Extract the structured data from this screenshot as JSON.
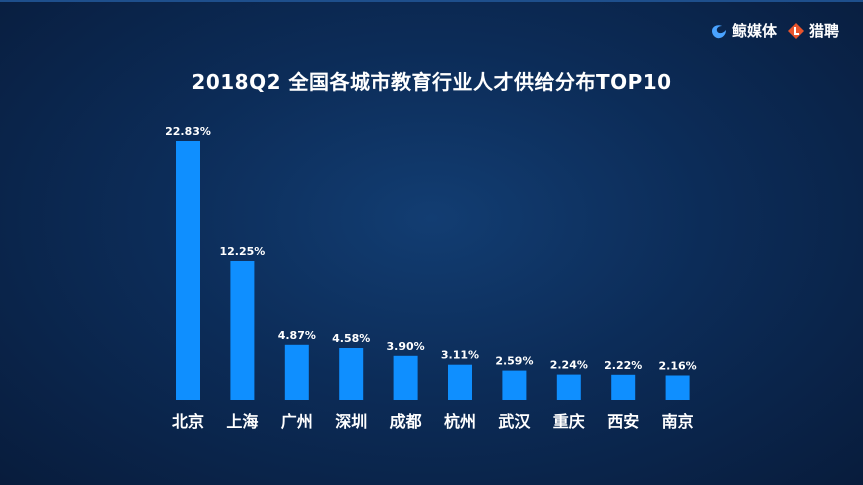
{
  "brand": {
    "left_logo_text": "鲸媒体",
    "right_logo_text": "猎聘",
    "left_logo_icon": "whale-wave-icon",
    "right_logo_icon": "liepin-l-icon",
    "left_logo_color": "#4aa3ff",
    "right_logo_color": "#e8542c"
  },
  "chart_data": {
    "type": "bar",
    "title": "2018Q2 全国各城市教育行业人才供给分布TOP10",
    "categories": [
      "北京",
      "上海",
      "广州",
      "深圳",
      "成都",
      "杭州",
      "武汉",
      "重庆",
      "西安",
      "南京"
    ],
    "values": [
      22.83,
      12.25,
      4.87,
      4.58,
      3.9,
      3.11,
      2.59,
      2.24,
      2.22,
      2.16
    ],
    "value_labels": [
      "22.83%",
      "12.25%",
      "4.87%",
      "4.58%",
      "3.90%",
      "3.11%",
      "2.59%",
      "2.24%",
      "2.22%",
      "2.16%"
    ],
    "bar_color": "#0f8fff",
    "xlabel": "",
    "ylabel": "",
    "ylim": [
      0,
      23
    ],
    "grid": false,
    "legend": "none"
  }
}
